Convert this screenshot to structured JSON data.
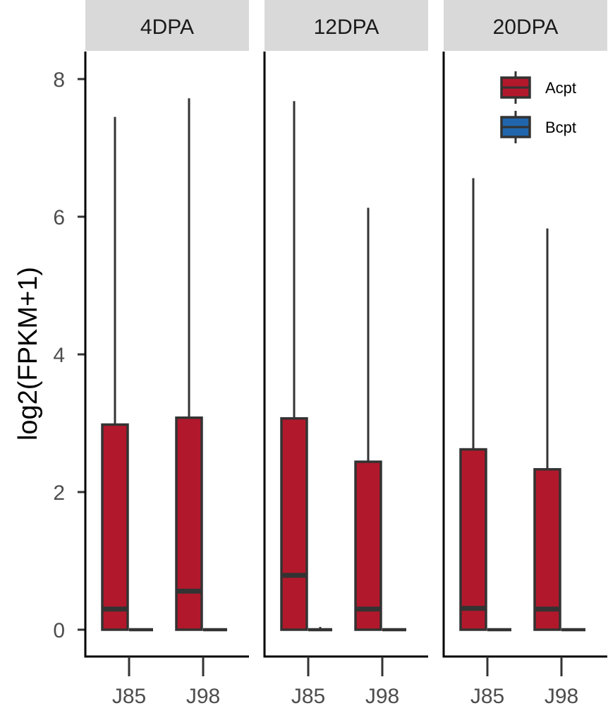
{
  "chart_data": {
    "type": "boxplot",
    "ylabel": "log2(FPKM+1)",
    "xlabel": "",
    "ylim": [
      -0.35,
      8.4
    ],
    "yticks": [
      0,
      2,
      4,
      6,
      8
    ],
    "ytick_labels": [
      "0",
      "2",
      "4",
      "6",
      "8"
    ],
    "categories": [
      "J85",
      "J98"
    ],
    "legend": {
      "position": "top-right",
      "entries": [
        {
          "label": "Acpt",
          "color": "#b2182b"
        },
        {
          "label": "Bcpt",
          "color": "#2166ac"
        }
      ]
    },
    "panels": [
      {
        "label": "4DPA",
        "boxes": [
          {
            "category": "J85",
            "group": "Acpt",
            "min": 0,
            "q1": 0,
            "median": 0.3,
            "q3": 2.98,
            "max": 7.45
          },
          {
            "category": "J85",
            "group": "Bcpt",
            "min": 0,
            "q1": 0,
            "median": 0,
            "q3": 0,
            "max": 0
          },
          {
            "category": "J98",
            "group": "Acpt",
            "min": 0,
            "q1": 0,
            "median": 0.56,
            "q3": 3.08,
            "max": 7.72
          },
          {
            "category": "J98",
            "group": "Bcpt",
            "min": 0,
            "q1": 0,
            "median": 0,
            "q3": 0,
            "max": 0
          }
        ]
      },
      {
        "label": "12DPA",
        "boxes": [
          {
            "category": "J85",
            "group": "Acpt",
            "min": 0,
            "q1": 0,
            "median": 0.79,
            "q3": 3.07,
            "max": 7.68
          },
          {
            "category": "J85",
            "group": "Bcpt",
            "min": 0,
            "q1": 0,
            "median": 0,
            "q3": 0.02,
            "max": 0.04
          },
          {
            "category": "J98",
            "group": "Acpt",
            "min": 0,
            "q1": 0,
            "median": 0.3,
            "q3": 2.44,
            "max": 6.13
          },
          {
            "category": "J98",
            "group": "Bcpt",
            "min": 0,
            "q1": 0,
            "median": 0,
            "q3": 0,
            "max": 0
          }
        ]
      },
      {
        "label": "20DPA",
        "boxes": [
          {
            "category": "J85",
            "group": "Acpt",
            "min": 0,
            "q1": 0,
            "median": 0.31,
            "q3": 2.62,
            "max": 6.56
          },
          {
            "category": "J85",
            "group": "Bcpt",
            "min": 0,
            "q1": 0,
            "median": 0,
            "q3": 0,
            "max": 0
          },
          {
            "category": "J98",
            "group": "Acpt",
            "min": 0,
            "q1": 0,
            "median": 0.3,
            "q3": 2.33,
            "max": 5.83
          },
          {
            "category": "J98",
            "group": "Bcpt",
            "min": 0,
            "q1": 0,
            "median": 0,
            "q3": 0,
            "max": 0
          }
        ]
      }
    ],
    "colors": {
      "outline": "#333333",
      "strip_background": "#d9d9d9",
      "axis": "#000000"
    }
  }
}
